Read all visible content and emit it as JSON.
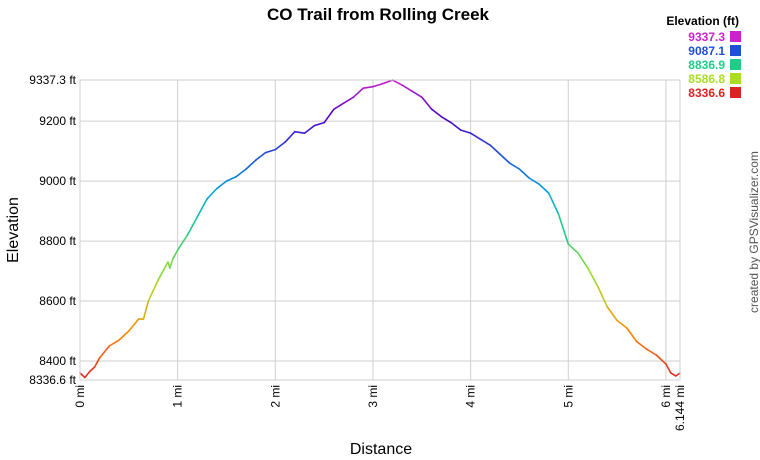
{
  "chart_data": {
    "type": "line",
    "title": "CO Trail from Rolling Creek",
    "xlabel": "Distance",
    "ylabel": "Elevation",
    "xlim": [
      0,
      6.144
    ],
    "ylim": [
      8336.6,
      9337.3
    ],
    "grid": true,
    "x_ticks": [
      {
        "value": 0,
        "label": "0 mi"
      },
      {
        "value": 1,
        "label": "1 mi"
      },
      {
        "value": 2,
        "label": "2 mi"
      },
      {
        "value": 3,
        "label": "3 mi"
      },
      {
        "value": 4,
        "label": "4 mi"
      },
      {
        "value": 5,
        "label": "5 mi"
      },
      {
        "value": 6,
        "label": "6 mi"
      },
      {
        "value": 6.144,
        "label": "6.144 mi"
      }
    ],
    "y_ticks": [
      {
        "value": 8336.6,
        "label": "8336.6 ft"
      },
      {
        "value": 8400,
        "label": "8400 ft"
      },
      {
        "value": 8600,
        "label": "8600 ft"
      },
      {
        "value": 8800,
        "label": "8800 ft"
      },
      {
        "value": 9000,
        "label": "9000 ft"
      },
      {
        "value": 9200,
        "label": "9200 ft"
      },
      {
        "value": 9337.3,
        "label": "9337.3 ft"
      }
    ],
    "legend": {
      "title": "Elevation (ft)",
      "placement": "top-right",
      "entries": [
        {
          "label": "9337.3",
          "color": "#cc22cc"
        },
        {
          "label": "9087.1",
          "color": "#1f4fd8"
        },
        {
          "label": "8836.9",
          "color": "#22cc88"
        },
        {
          "label": "8586.8",
          "color": "#aadd22"
        },
        {
          "label": "8336.6",
          "color": "#dd2222"
        }
      ]
    },
    "series": [
      {
        "x": [
          0,
          0.05,
          0.1,
          0.15,
          0.2,
          0.3,
          0.4,
          0.5,
          0.6,
          0.65,
          0.7,
          0.8,
          0.9,
          0.92,
          0.95,
          1.0,
          1.1,
          1.2,
          1.3,
          1.4,
          1.5,
          1.6,
          1.7,
          1.8,
          1.9,
          2.0,
          2.1,
          2.2,
          2.3,
          2.4,
          2.5,
          2.6,
          2.7,
          2.8,
          2.9,
          3.0,
          3.1,
          3.2,
          3.3,
          3.4,
          3.5,
          3.6,
          3.7,
          3.8,
          3.9,
          4.0,
          4.1,
          4.2,
          4.3,
          4.4,
          4.5,
          4.6,
          4.7,
          4.8,
          4.9,
          5.0,
          5.1,
          5.2,
          5.3,
          5.4,
          5.5,
          5.6,
          5.7,
          5.8,
          5.9,
          6.0,
          6.05,
          6.1,
          6.144
        ],
        "y": [
          8360,
          8345,
          8365,
          8380,
          8410,
          8450,
          8470,
          8500,
          8540,
          8540,
          8600,
          8670,
          8730,
          8710,
          8740,
          8770,
          8820,
          8880,
          8940,
          8975,
          9000,
          9015,
          9040,
          9070,
          9095,
          9105,
          9130,
          9165,
          9160,
          9185,
          9195,
          9240,
          9260,
          9280,
          9310,
          9315,
          9325,
          9337,
          9320,
          9300,
          9280,
          9240,
          9215,
          9195,
          9170,
          9160,
          9140,
          9120,
          9090,
          9060,
          9040,
          9010,
          8990,
          8960,
          8890,
          8790,
          8760,
          8710,
          8650,
          8580,
          8535,
          8510,
          8465,
          8440,
          8420,
          8390,
          8360,
          8350,
          8360
        ]
      }
    ]
  },
  "credit": "created by GPSVisualizer.com"
}
